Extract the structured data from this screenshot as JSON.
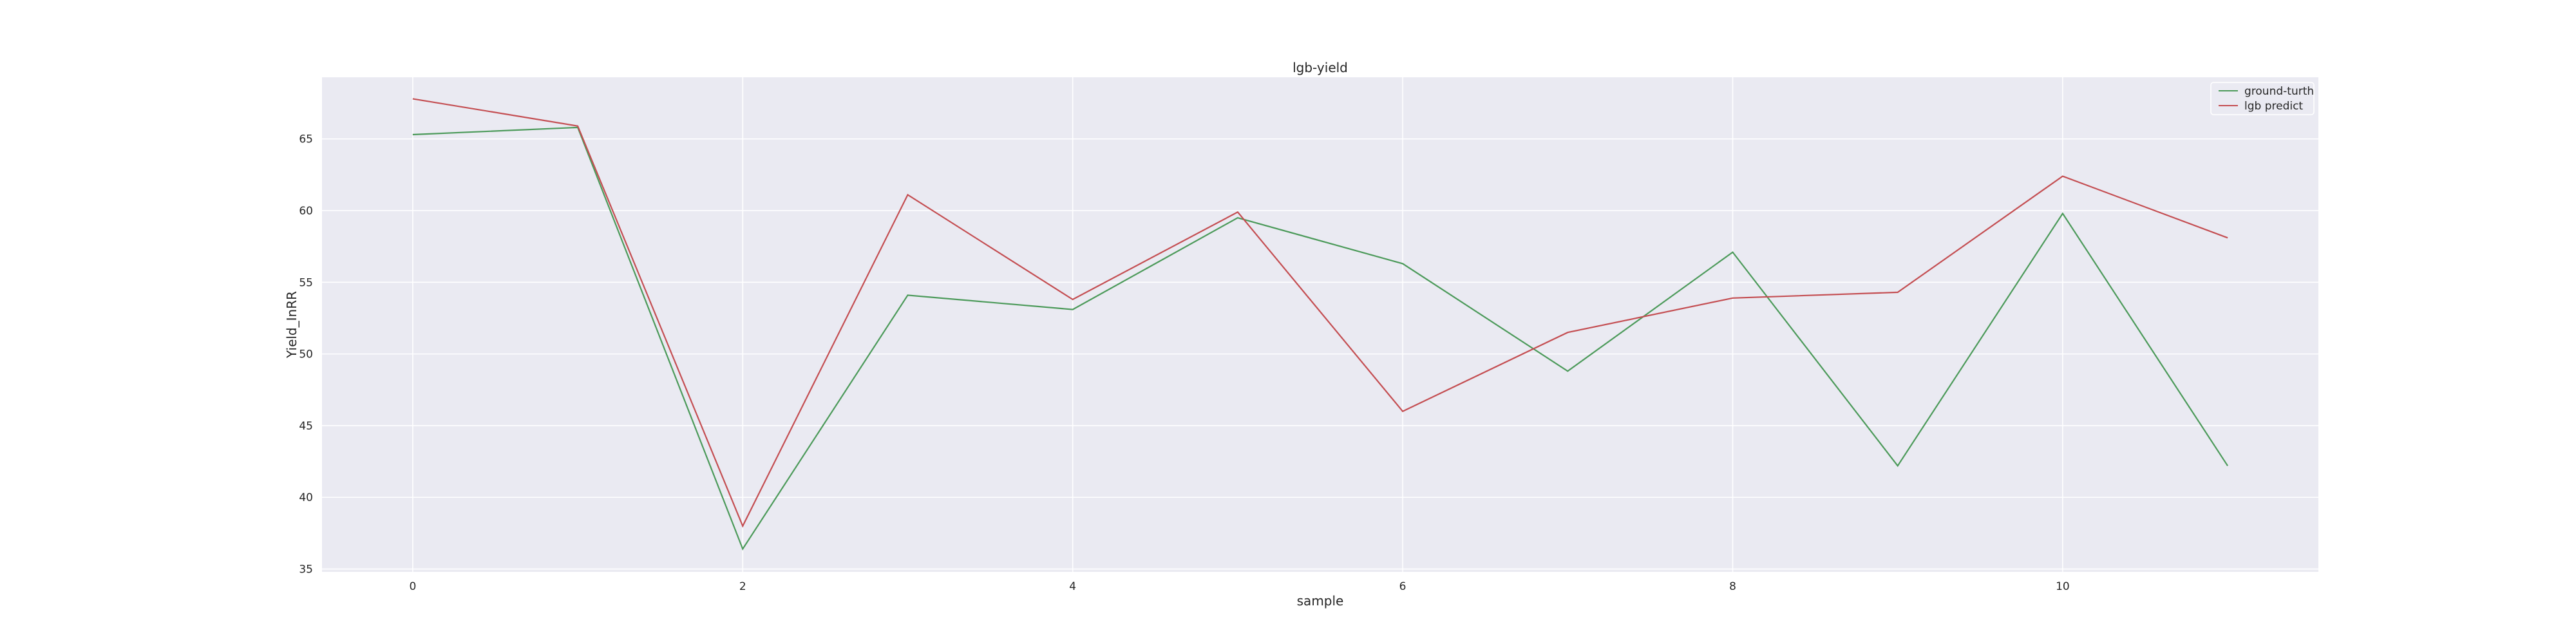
{
  "chart_data": {
    "type": "line",
    "title": "lgb-yield",
    "xlabel": "sample",
    "ylabel": "Yield_InRR",
    "x": [
      0,
      1,
      2,
      3,
      4,
      5,
      6,
      7,
      8,
      9,
      10,
      11
    ],
    "xticks": [
      0,
      2,
      4,
      6,
      8,
      10
    ],
    "yticks": [
      35,
      40,
      45,
      50,
      55,
      60,
      65
    ],
    "xlim": [
      -0.55,
      11.55
    ],
    "ylim": [
      34.8,
      69.3
    ],
    "grid": true,
    "legend_position": "top-right",
    "series": [
      {
        "name": "ground-turth",
        "color": "#4c9a5a",
        "values": [
          65.3,
          65.8,
          36.4,
          54.1,
          53.1,
          59.5,
          56.3,
          48.8,
          57.1,
          42.2,
          59.8,
          42.2
        ]
      },
      {
        "name": "lgb predict",
        "color": "#c44e52",
        "values": [
          67.8,
          65.9,
          38.0,
          61.1,
          53.8,
          59.9,
          46.0,
          51.5,
          53.9,
          54.3,
          62.4,
          58.1
        ]
      }
    ]
  }
}
